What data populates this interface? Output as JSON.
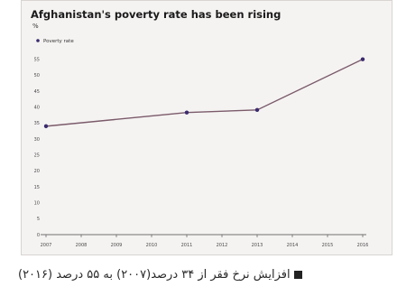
{
  "chart_data": {
    "type": "line",
    "title": "Afghanistan's poverty rate has been rising",
    "ylabel": "%",
    "xlabel": "",
    "x": [
      2007,
      2008,
      2009,
      2010,
      2011,
      2012,
      2013,
      2014,
      2015,
      2016
    ],
    "categories": [
      "2007",
      "2008",
      "2009",
      "2010",
      "2011",
      "2012",
      "2013",
      "2014",
      "2015",
      "2016"
    ],
    "series": [
      {
        "name": "Poverty rate",
        "points": [
          {
            "x": 2007,
            "y": 34
          },
          {
            "x": 2011,
            "y": 38.3
          },
          {
            "x": 2013,
            "y": 39.1
          },
          {
            "x": 2016,
            "y": 55
          }
        ]
      }
    ],
    "ylim": [
      0,
      60
    ],
    "yticks": [
      0,
      5,
      10,
      15,
      20,
      25,
      30,
      35,
      40,
      45,
      50,
      55
    ],
    "grid": false,
    "legend_position": "top-left",
    "colors": {
      "line": "#7a5a6a",
      "marker": "#3a2b6e",
      "axis": "#444444"
    }
  },
  "caption": {
    "text": "افزایش نرخ فقر از ۳۴ درصد(۲۰۰۷) به ۵۵ درصد (۲۰۱۶)"
  }
}
